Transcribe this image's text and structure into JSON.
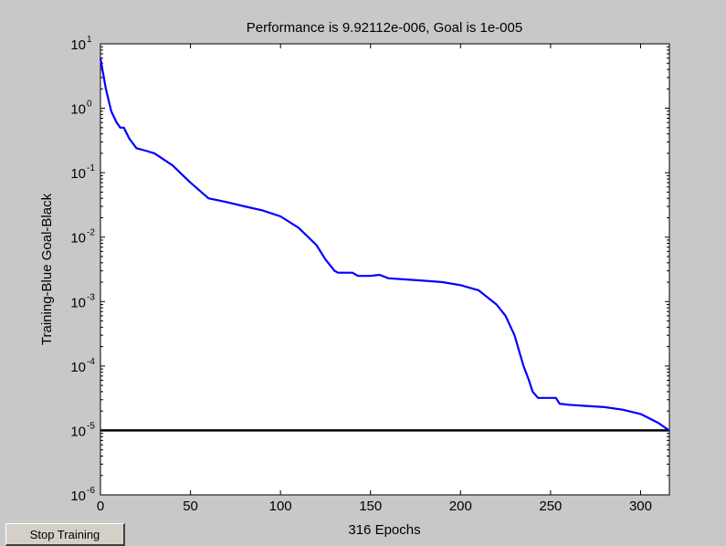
{
  "chart_data": {
    "type": "line",
    "title": "Performance is 9.92112e-006, Goal is 1e-005",
    "xlabel": "316 Epochs",
    "ylabel": "Training-Blue  Goal-Black",
    "x_scale": "linear",
    "y_scale": "log",
    "xlim": [
      0,
      316
    ],
    "ylim": [
      1e-06,
      10
    ],
    "x_ticks": [
      0,
      50,
      100,
      150,
      200,
      250,
      300
    ],
    "y_ticks": [
      {
        "base": "10",
        "exp": "1",
        "value": 10
      },
      {
        "base": "10",
        "exp": "0",
        "value": 1
      },
      {
        "base": "10",
        "exp": "-1",
        "value": 0.1
      },
      {
        "base": "10",
        "exp": "-2",
        "value": 0.01
      },
      {
        "base": "10",
        "exp": "-3",
        "value": 0.001
      },
      {
        "base": "10",
        "exp": "-4",
        "value": 0.0001
      },
      {
        "base": "10",
        "exp": "-5",
        "value": 1e-05
      },
      {
        "base": "10",
        "exp": "-6",
        "value": 1e-06
      }
    ],
    "grid": false,
    "legend": "none",
    "colors": {
      "training": "#0000ff",
      "goal": "#000000",
      "plot_background": "#ffffff",
      "figure_background": "#c8c8c8"
    },
    "series": [
      {
        "name": "Training",
        "color": "#0000ff",
        "x": [
          0,
          3,
          6,
          9,
          11,
          13,
          16,
          20,
          25,
          30,
          40,
          50,
          60,
          70,
          80,
          90,
          100,
          110,
          120,
          125,
          130,
          132,
          135,
          140,
          143,
          145,
          148,
          150,
          155,
          160,
          170,
          180,
          190,
          200,
          210,
          220,
          225,
          230,
          235,
          238,
          240,
          243,
          245,
          250,
          253,
          255,
          260,
          270,
          280,
          290,
          300,
          310,
          316
        ],
        "y": [
          6.0,
          2.0,
          0.9,
          0.6,
          0.5,
          0.5,
          0.34,
          0.24,
          0.22,
          0.2,
          0.13,
          0.07,
          0.04,
          0.035,
          0.03,
          0.026,
          0.021,
          0.014,
          0.0075,
          0.0045,
          0.003,
          0.0028,
          0.0028,
          0.0028,
          0.0025,
          0.0025,
          0.0025,
          0.0025,
          0.0026,
          0.0023,
          0.0022,
          0.0021,
          0.002,
          0.0018,
          0.0015,
          0.0009,
          0.0006,
          0.0003,
          0.0001,
          6e-05,
          4e-05,
          3.2e-05,
          3.2e-05,
          3.2e-05,
          3.2e-05,
          2.6e-05,
          2.5e-05,
          2.4e-05,
          2.3e-05,
          2.1e-05,
          1.8e-05,
          1.3e-05,
          9.9e-06
        ]
      },
      {
        "name": "Goal",
        "color": "#000000",
        "x": [
          0,
          316
        ],
        "y": [
          1e-05,
          1e-05
        ]
      }
    ]
  },
  "controls": {
    "stop_button_label": "Stop Training"
  }
}
